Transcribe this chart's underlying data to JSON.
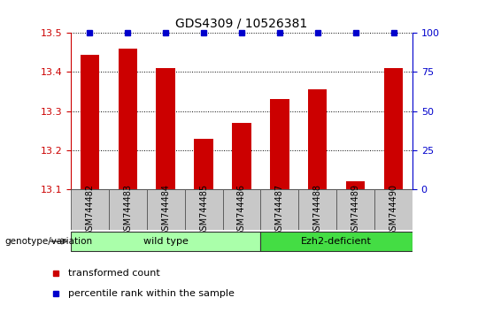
{
  "title": "GDS4309 / 10526381",
  "samples": [
    "GSM744482",
    "GSM744483",
    "GSM744484",
    "GSM744485",
    "GSM744486",
    "GSM744487",
    "GSM744488",
    "GSM744489",
    "GSM744490"
  ],
  "red_values": [
    13.445,
    13.46,
    13.41,
    13.23,
    13.27,
    13.33,
    13.355,
    13.12,
    13.41
  ],
  "blue_values": [
    100,
    100,
    100,
    100,
    100,
    100,
    100,
    100,
    100
  ],
  "ylim_left": [
    13.1,
    13.5
  ],
  "ylim_right": [
    0,
    100
  ],
  "yticks_left": [
    13.1,
    13.2,
    13.3,
    13.4,
    13.5
  ],
  "yticks_right": [
    0,
    25,
    50,
    75,
    100
  ],
  "groups": [
    {
      "label": "wild type",
      "start": 0,
      "end": 4,
      "color": "#aaffaa"
    },
    {
      "label": "Ezh2-deficient",
      "start": 5,
      "end": 8,
      "color": "#44dd44"
    }
  ],
  "group_label": "genotype/variation",
  "bar_color": "#cc0000",
  "dot_color": "#0000cc",
  "bar_width": 0.5,
  "background_color": "#ffffff",
  "axis_color_left": "#cc0000",
  "axis_color_right": "#0000cc",
  "legend_items": [
    {
      "label": "transformed count",
      "color": "#cc0000"
    },
    {
      "label": "percentile rank within the sample",
      "color": "#0000cc"
    }
  ],
  "tick_area_color": "#c8c8c8",
  "spine_color": "#000000"
}
